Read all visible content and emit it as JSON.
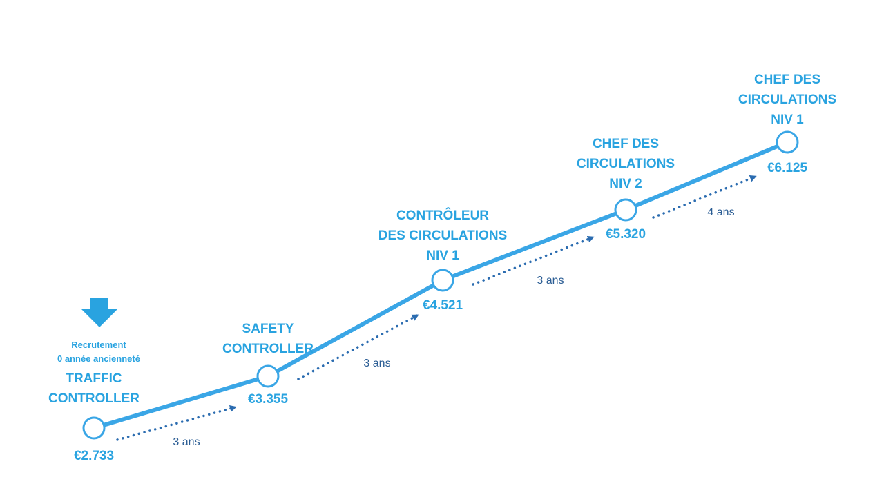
{
  "colors": {
    "main_line": "#3aa6e6",
    "node_fill": "#ffffff",
    "text": "#29a3e0",
    "dotted_arrow": "#2b6cb0",
    "duration_text": "#2b5d94",
    "down_arrow": "#29a3e0"
  },
  "recruitment": {
    "line1": "Recrutement",
    "line2": "0 année ancienneté",
    "icon": "arrow-down-icon"
  },
  "steps": [
    {
      "title_lines": [
        "TRAFFIC",
        "CONTROLLER"
      ],
      "salary": "€2.733"
    },
    {
      "title_lines": [
        "SAFETY",
        "CONTROLLER"
      ],
      "salary": "€3.355"
    },
    {
      "title_lines": [
        "CONTRÔLEUR",
        "DES CIRCULATIONS",
        "NIV 1"
      ],
      "salary": "€4.521"
    },
    {
      "title_lines": [
        "CHEF DES",
        "CIRCULATIONS",
        "NIV 2"
      ],
      "salary": "€5.320"
    },
    {
      "title_lines": [
        "CHEF DES",
        "CIRCULATIONS",
        "NIV 1"
      ],
      "salary": "€6.125"
    }
  ],
  "transitions": [
    {
      "duration": "3 ans"
    },
    {
      "duration": "3 ans"
    },
    {
      "duration": "3 ans"
    },
    {
      "duration": "4 ans"
    }
  ]
}
